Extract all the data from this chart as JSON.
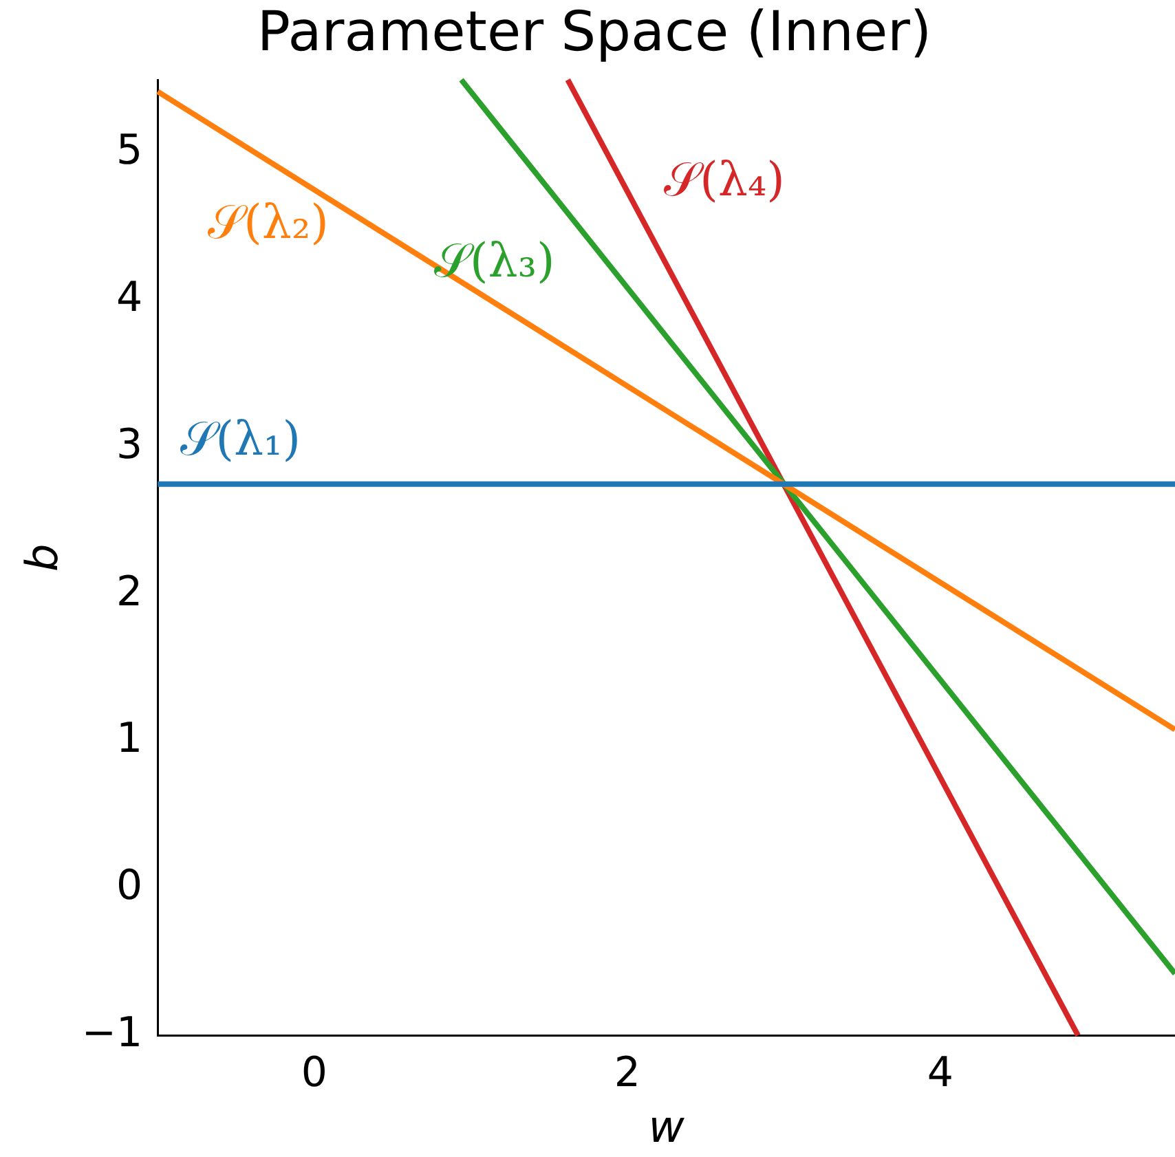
{
  "chart_data": {
    "type": "line",
    "title": "Parameter Space (Inner)",
    "xlabel": "w",
    "ylabel": "b",
    "xlim": [
      -1,
      5.5
    ],
    "ylim": [
      -1,
      5.5
    ],
    "xticks": [
      0,
      2,
      4
    ],
    "yticks": [
      {
        "value": -1,
        "label": "−1"
      },
      0,
      1,
      2,
      3,
      4,
      5
    ],
    "grid": false,
    "legend": false,
    "marker": "none",
    "line_style": "solid",
    "series": [
      {
        "name": "𝒮(λ₁)",
        "color": "#1f77b4",
        "x": [
          -1,
          5.5
        ],
        "values": [
          2.75,
          2.75
        ]
      },
      {
        "name": "𝒮(λ₂)",
        "color": "#ff7f0e",
        "x": [
          -1,
          5.5
        ],
        "values": [
          5.42,
          1.08
        ]
      },
      {
        "name": "𝒮(λ₃)",
        "color": "#2ca02c",
        "x": [
          0.94,
          5.5
        ],
        "values": [
          5.5,
          -0.58
        ]
      },
      {
        "name": "𝒮(λ₄)",
        "color": "#d62728",
        "x": [
          1.62,
          4.88
        ],
        "values": [
          5.5,
          -1
        ]
      }
    ]
  }
}
